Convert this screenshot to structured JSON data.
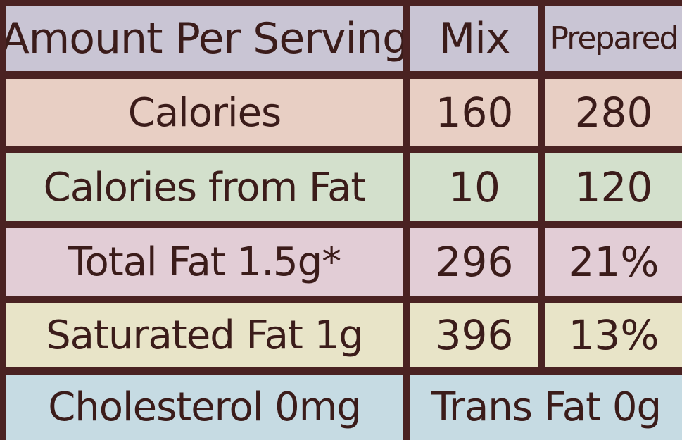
{
  "table": {
    "header": {
      "label": "Amount Per Serving",
      "col_mix": "Mix",
      "col_prepared": "Prepared"
    },
    "rows": [
      {
        "label": "Calories",
        "mix": "160",
        "prepared": "280"
      },
      {
        "label": "Calories from Fat",
        "mix": "10",
        "prepared": "120"
      },
      {
        "label": "Total Fat 1.5g*",
        "mix": "296",
        "prepared": "21%"
      },
      {
        "label": "Saturated Fat 1g",
        "mix": "396",
        "prepared": "13%"
      }
    ],
    "footer": {
      "left": "Cholesterol 0mg",
      "right": "Trans Fat 0g"
    }
  },
  "colors": {
    "border": "#4a2222",
    "header_bg": "#c9c5d4",
    "calories_bg": "#e8cfc4",
    "calories_fat_bg": "#d3e0cc",
    "total_fat_bg": "#e2cdd6",
    "saturated_fat_bg": "#e8e4c8",
    "cholesterol_bg": "#c6dbe3",
    "text": "#3b1c1a"
  }
}
